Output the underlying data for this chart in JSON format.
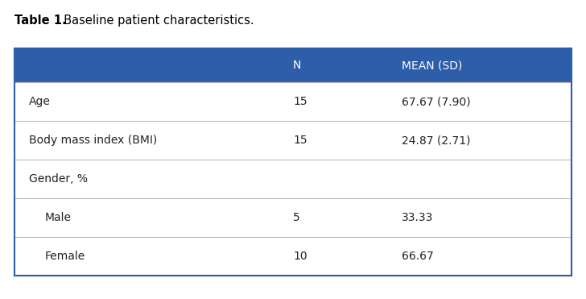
{
  "title_bold": "Table 1.",
  "title_regular": "  Baseline patient characteristics.",
  "header_bg_color": "#2E5EAA",
  "header_text_color": "#FFFFFF",
  "divider_color": "#BBBBBB",
  "outer_border_color": "#2E5EAA",
  "col_headers": [
    "",
    "N",
    "MEAN (SD)"
  ],
  "rows": [
    {
      "label": "Age",
      "indent": false,
      "n": "15",
      "mean": "67.67 (7.90)"
    },
    {
      "label": "Body mass index (BMI)",
      "indent": false,
      "n": "15",
      "mean": "24.87 (2.71)"
    },
    {
      "label": "Gender, %",
      "indent": false,
      "n": "",
      "mean": ""
    },
    {
      "label": "Male",
      "indent": true,
      "n": "5",
      "mean": "33.33"
    },
    {
      "label": "Female",
      "indent": true,
      "n": "10",
      "mean": "66.67"
    }
  ],
  "title_fontsize": 10.5,
  "header_fontsize": 10,
  "body_fontsize": 10,
  "background_color": "#FFFFFF",
  "fig_width": 7.28,
  "fig_height": 3.71,
  "dpi": 100
}
